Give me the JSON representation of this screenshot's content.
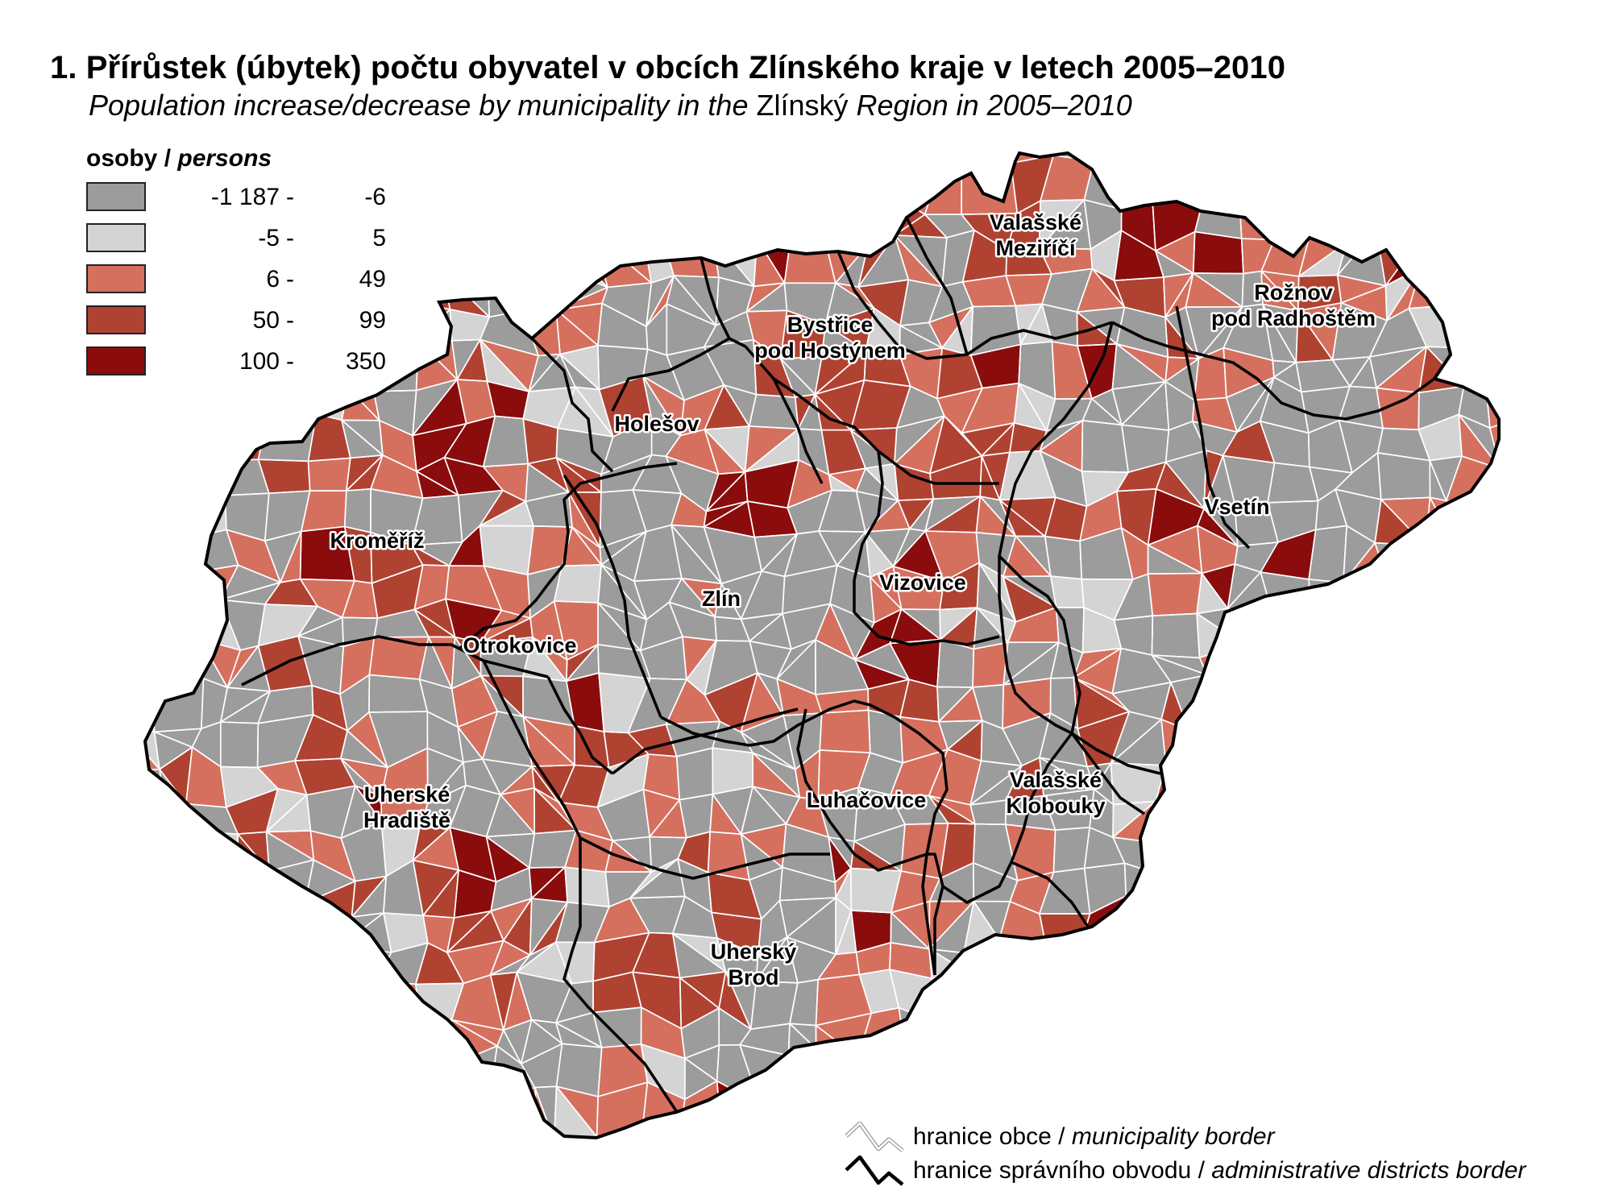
{
  "title": "1. Přírůstek (úbytek) počtu obyvatel v obcích Zlínského kraje v letech 2005–2010",
  "subtitle": {
    "part1": "Population increase/decrease by municipality in the ",
    "region": "Zlínský",
    "part2": " Region in 2005–2010"
  },
  "legend": {
    "heading_cz": "osoby",
    "separator": " / ",
    "heading_en": "persons",
    "classes": [
      {
        "from": "-1 187",
        "to": "-6",
        "color": "#9c9c9c"
      },
      {
        "from": "-5",
        "to": "5",
        "color": "#d4d4d4"
      },
      {
        "from": "6",
        "to": "49",
        "color": "#d5705f"
      },
      {
        "from": "50",
        "to": "99",
        "color": "#b04232"
      },
      {
        "from": "100",
        "to": "350",
        "color": "#8a0c0c"
      }
    ]
  },
  "districts": [
    {
      "lines": [
        "Valašské",
        "Meziříčí"
      ]
    },
    {
      "lines": [
        "Rožnov",
        "pod Radhoštěm"
      ]
    },
    {
      "lines": [
        "Bystřice",
        "pod Hostýnem"
      ]
    },
    {
      "lines": [
        "Holešov"
      ]
    },
    {
      "lines": [
        "Kroměříž"
      ]
    },
    {
      "lines": [
        "Vsetín"
      ]
    },
    {
      "lines": [
        "Zlín"
      ]
    },
    {
      "lines": [
        "Vizovice"
      ]
    },
    {
      "lines": [
        "Otrokovice"
      ]
    },
    {
      "lines": [
        "Valašské",
        "Klobouky"
      ]
    },
    {
      "lines": [
        "Luhačovice"
      ]
    },
    {
      "lines": [
        "Uherské",
        "Hradiště"
      ]
    },
    {
      "lines": [
        "Uherský",
        "Brod"
      ]
    }
  ],
  "border_legend": {
    "municipality_cz": "hranice obce",
    "municipality_en": "municipality border",
    "district_cz": "hranice správního obvodu",
    "district_en": "administrative districts border",
    "separator": " / "
  }
}
